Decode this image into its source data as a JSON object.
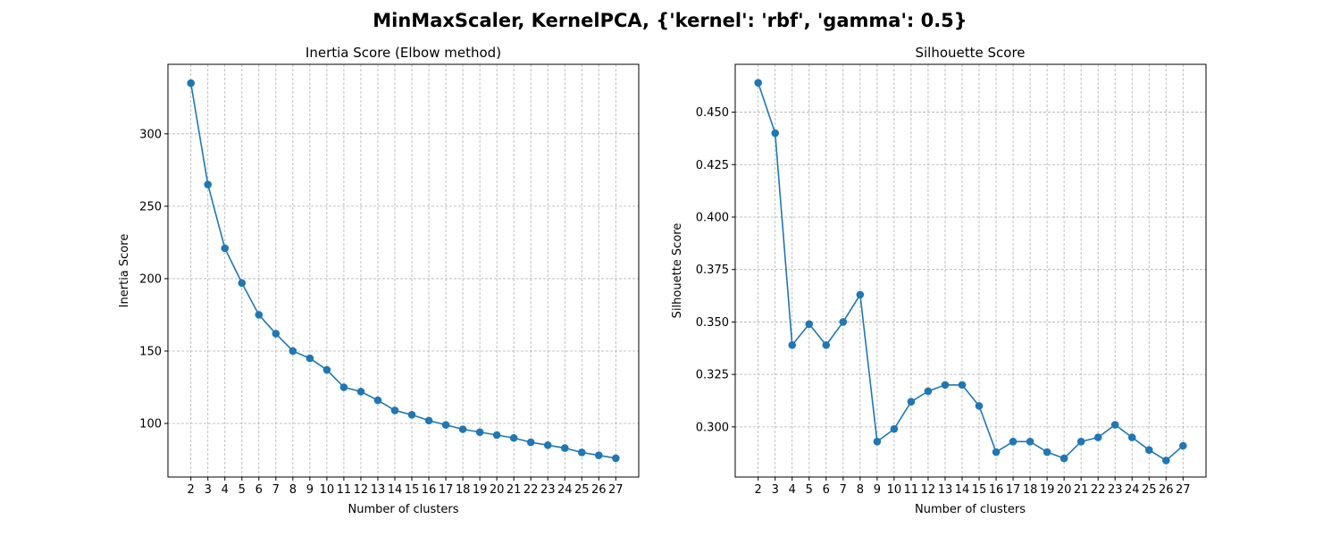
{
  "figure": {
    "suptitle": "MinMaxScaler, KernelPCA, {'kernel': 'rbf', 'gamma': 0.5}",
    "line_color": "#1f77b4"
  },
  "chart_data": [
    {
      "type": "line",
      "title": "Inertia Score (Elbow method)",
      "xlabel": "Number of clusters",
      "ylabel": "Inertia Score",
      "grid": true,
      "marker": "circle",
      "x": [
        2,
        3,
        4,
        5,
        6,
        7,
        8,
        9,
        10,
        11,
        12,
        13,
        14,
        15,
        16,
        17,
        18,
        19,
        20,
        21,
        22,
        23,
        24,
        25,
        26,
        27
      ],
      "y": [
        335,
        265,
        221,
        197,
        175,
        162,
        150,
        145,
        137,
        125,
        122,
        116,
        109,
        106,
        102,
        99,
        96,
        94,
        92,
        90,
        87,
        85,
        83,
        80,
        78,
        76
      ],
      "xlim": [
        0.65,
        28.35
      ],
      "ylim": [
        63,
        348
      ],
      "yticks": [
        100,
        150,
        200,
        250,
        300
      ],
      "ytick_labels": [
        "100",
        "150",
        "200",
        "250",
        "300"
      ],
      "xtick_labels": [
        "2",
        "3",
        "4",
        "5",
        "6",
        "7",
        "8",
        "9",
        "10",
        "11",
        "12",
        "13",
        "14",
        "15",
        "16",
        "17",
        "18",
        "19",
        "20",
        "21",
        "22",
        "23",
        "24",
        "25",
        "26",
        "27"
      ]
    },
    {
      "type": "line",
      "title": "Silhouette Score",
      "xlabel": "Number of clusters",
      "ylabel": "Silhouette Score",
      "grid": true,
      "marker": "circle",
      "x": [
        2,
        3,
        4,
        5,
        6,
        7,
        8,
        9,
        10,
        11,
        12,
        13,
        14,
        15,
        16,
        17,
        18,
        19,
        20,
        21,
        22,
        23,
        24,
        25,
        26,
        27
      ],
      "y": [
        0.464,
        0.44,
        0.339,
        0.349,
        0.339,
        0.35,
        0.363,
        0.293,
        0.299,
        0.312,
        0.317,
        0.32,
        0.32,
        0.31,
        0.288,
        0.293,
        0.293,
        0.288,
        0.285,
        0.293,
        0.295,
        0.301,
        0.295,
        0.289,
        0.284,
        0.291
      ],
      "xlim": [
        0.65,
        28.35
      ],
      "ylim": [
        0.2761,
        0.4728
      ],
      "yticks": [
        0.3,
        0.325,
        0.35,
        0.375,
        0.4,
        0.425,
        0.45
      ],
      "ytick_labels": [
        "0.300",
        "0.325",
        "0.350",
        "0.375",
        "0.400",
        "0.425",
        "0.450"
      ],
      "xtick_labels": [
        "2",
        "3",
        "4",
        "5",
        "6",
        "7",
        "8",
        "9",
        "10",
        "11",
        "12",
        "13",
        "14",
        "15",
        "16",
        "17",
        "18",
        "19",
        "20",
        "21",
        "22",
        "23",
        "24",
        "25",
        "26",
        "27"
      ]
    }
  ]
}
